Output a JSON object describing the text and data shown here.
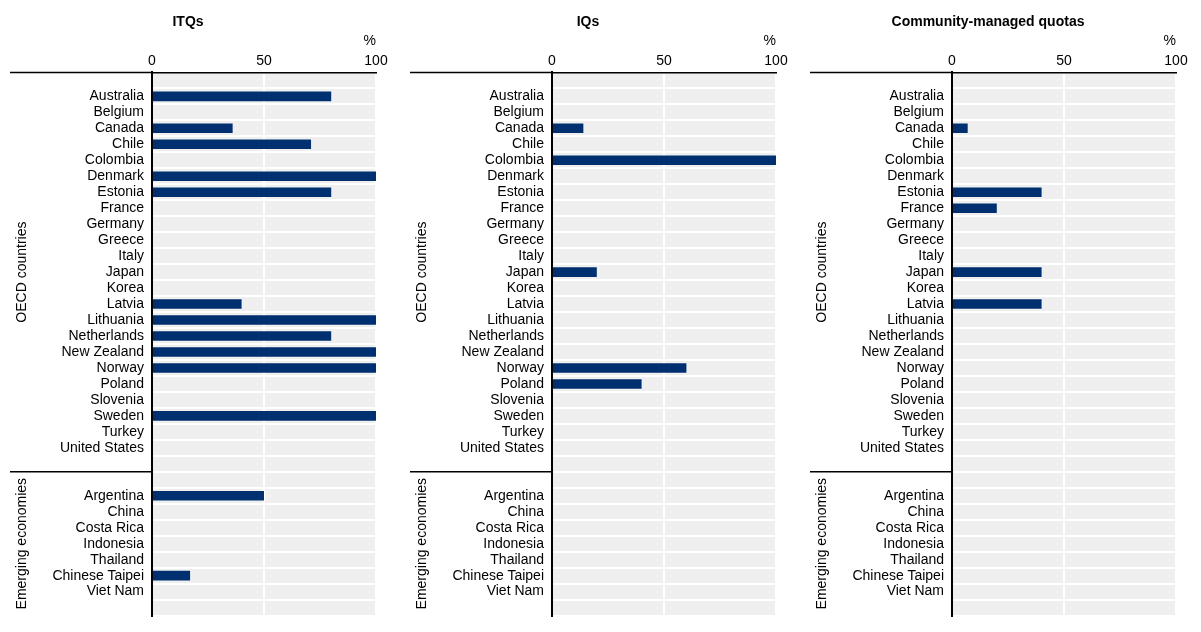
{
  "chart_data": [
    {
      "type": "bar",
      "orientation": "horizontal",
      "title": "ITQs",
      "xlabel": "%",
      "color": "#003070",
      "xlim": [
        0,
        100
      ],
      "xticks": [
        0,
        50,
        100
      ],
      "grid": true,
      "annotations": [
        "OECD countries",
        "Emerging economies"
      ],
      "categories": [
        null,
        "Australia",
        "Belgium",
        "Canada",
        "Chile",
        "Colombia",
        "Denmark",
        "Estonia",
        "France",
        "Germany",
        "Greece",
        "Italy",
        "Japan",
        "Korea",
        "Latvia",
        "Lithuania",
        "Netherlands",
        "New Zealand",
        "Norway",
        "Poland",
        "Slovenia",
        "Sweden",
        "Turkey",
        "United States",
        null,
        null,
        "Argentina",
        "China",
        "Costa Rica",
        "Indonesia",
        "Thailand",
        "Chinese Taipei",
        "Viet Nam",
        null
      ],
      "values": [
        null,
        80,
        0,
        36,
        71,
        0,
        100,
        80,
        0,
        0,
        0,
        0,
        0,
        0,
        40,
        100,
        80,
        100,
        100,
        0,
        0,
        100,
        0,
        0,
        null,
        null,
        50,
        0,
        0,
        0,
        0,
        17,
        0,
        null
      ]
    },
    {
      "type": "bar",
      "orientation": "horizontal",
      "title": "IQs",
      "xlabel": "%",
      "color": "#003070",
      "xlim": [
        0,
        100
      ],
      "xticks": [
        0,
        50,
        100
      ],
      "grid": true,
      "annotations": [
        "OECD countries",
        "Emerging economies"
      ],
      "categories": [
        null,
        "Australia",
        "Belgium",
        "Canada",
        "Chile",
        "Colombia",
        "Denmark",
        "Estonia",
        "France",
        "Germany",
        "Greece",
        "Italy",
        "Japan",
        "Korea",
        "Latvia",
        "Lithuania",
        "Netherlands",
        "New Zealand",
        "Norway",
        "Poland",
        "Slovenia",
        "Sweden",
        "Turkey",
        "United States",
        null,
        null,
        "Argentina",
        "China",
        "Costa Rica",
        "Indonesia",
        "Thailand",
        "Chinese Taipei",
        "Viet Nam",
        null
      ],
      "values": [
        null,
        0,
        0,
        14,
        0,
        100,
        0,
        0,
        0,
        0,
        0,
        0,
        20,
        0,
        0,
        0,
        0,
        0,
        60,
        40,
        0,
        0,
        0,
        0,
        null,
        null,
        0,
        0,
        0,
        0,
        0,
        0,
        0,
        null
      ]
    },
    {
      "type": "bar",
      "orientation": "horizontal",
      "title": "Community-managed quotas",
      "xlabel": "%",
      "color": "#003070",
      "xlim": [
        0,
        100
      ],
      "xticks": [
        0,
        50,
        100
      ],
      "grid": true,
      "annotations": [
        "OECD countries",
        "Emerging economies"
      ],
      "categories": [
        null,
        "Australia",
        "Belgium",
        "Canada",
        "Chile",
        "Colombia",
        "Denmark",
        "Estonia",
        "France",
        "Germany",
        "Greece",
        "Italy",
        "Japan",
        "Korea",
        "Latvia",
        "Lithuania",
        "Netherlands",
        "New Zealand",
        "Norway",
        "Poland",
        "Slovenia",
        "Sweden",
        "Turkey",
        "United States",
        null,
        null,
        "Argentina",
        "China",
        "Costa Rica",
        "Indonesia",
        "Thailand",
        "Chinese Taipei",
        "Viet Nam",
        null
      ],
      "values": [
        null,
        0,
        0,
        7,
        0,
        0,
        0,
        40,
        20,
        0,
        0,
        0,
        40,
        0,
        40,
        0,
        0,
        0,
        0,
        0,
        0,
        0,
        0,
        0,
        null,
        null,
        0,
        0,
        0,
        0,
        0,
        0,
        0,
        null
      ]
    }
  ]
}
